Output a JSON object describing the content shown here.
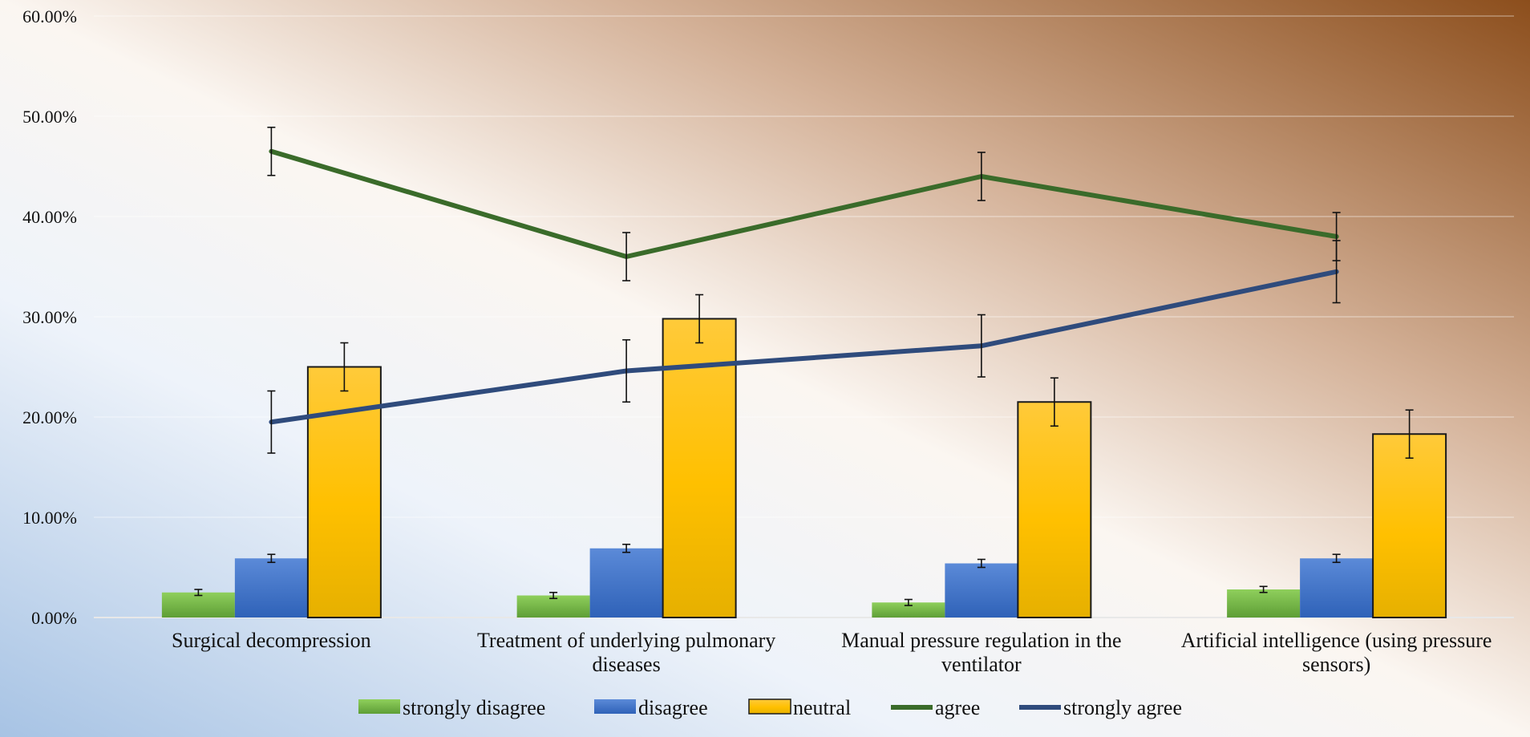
{
  "chart_data": {
    "type": "bar",
    "categories": [
      [
        "Surgical decompression"
      ],
      [
        "Treatment of underlying pulmonary",
        "diseases"
      ],
      [
        "Manual pressure regulation in the",
        "ventilator"
      ],
      [
        "Artificial intelligence (using pressure",
        "sensors)"
      ]
    ],
    "yticks": [
      "0.00%",
      "10.00%",
      "20.00%",
      "30.00%",
      "40.00%",
      "50.00%",
      "60.00%"
    ],
    "ylim": [
      0,
      60
    ],
    "grid": true,
    "legend_position": "bottom",
    "bar_series": [
      {
        "name": "strongly disagree",
        "color": "#70ad47",
        "values": [
          2.5,
          2.2,
          1.5,
          2.8
        ],
        "errors": [
          0.3,
          0.3,
          0.3,
          0.3
        ]
      },
      {
        "name": "disagree",
        "color": "#4472c4",
        "values": [
          5.9,
          6.9,
          5.4,
          5.9
        ],
        "errors": [
          0.4,
          0.4,
          0.4,
          0.4
        ]
      },
      {
        "name": "neutral",
        "color": "#ffc000",
        "values": [
          25.0,
          29.8,
          21.5,
          18.3
        ],
        "errors": [
          2.4,
          2.4,
          2.4,
          2.4
        ]
      }
    ],
    "line_series": [
      {
        "name": "agree",
        "color": "#3a6b2a",
        "values": [
          46.5,
          36.0,
          44.0,
          38.0
        ],
        "errors": [
          2.4,
          2.4,
          2.4,
          2.4
        ]
      },
      {
        "name": "strongly agree",
        "color": "#2f4b7c",
        "values": [
          19.5,
          24.6,
          27.1,
          34.5
        ],
        "errors": [
          3.1,
          3.1,
          3.1,
          3.1
        ]
      }
    ]
  }
}
